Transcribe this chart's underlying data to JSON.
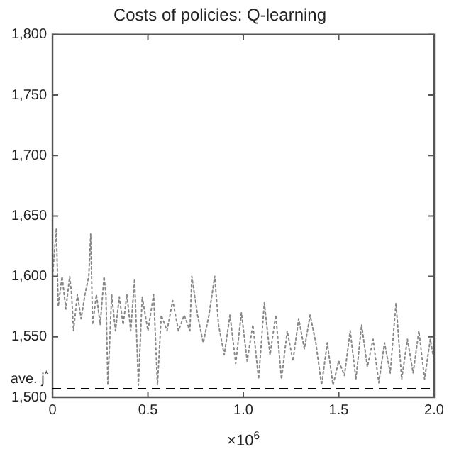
{
  "chart_data": {
    "type": "line",
    "title": "Costs of policies: Q-learning",
    "xlabel": "×10$^{6}$",
    "xlim": [
      0,
      2
    ],
    "xticks": [
      0,
      0.5,
      {
        "value": 1,
        "label": "1.0"
      },
      1.5,
      {
        "value": 2,
        "label": "2.0"
      }
    ],
    "ylim": [
      1500,
      1800
    ],
    "yticks": [
      {
        "value": 1500,
        "label": "1,500"
      },
      {
        "value": 1550,
        "label": "1,550"
      },
      {
        "value": 1600,
        "label": "1,600"
      },
      {
        "value": 1650,
        "label": "1,650"
      },
      {
        "value": 1700,
        "label": "1,700"
      },
      {
        "value": 1750,
        "label": "1,750"
      },
      {
        "value": 1800,
        "label": "1,800"
      }
    ],
    "grid": false,
    "legend": false,
    "marker": "none",
    "line_style": "dotted",
    "x": [
      0,
      0.02,
      0.03,
      0.05,
      0.07,
      0.09,
      0.1,
      0.11,
      0.13,
      0.15,
      0.17,
      0.19,
      0.2,
      0.21,
      0.23,
      0.25,
      0.27,
      0.28,
      0.29,
      0.31,
      0.33,
      0.35,
      0.37,
      0.39,
      0.41,
      0.43,
      0.45,
      0.47,
      0.5,
      0.53,
      0.55,
      0.57,
      0.6,
      0.63,
      0.66,
      0.69,
      0.72,
      0.73,
      0.76,
      0.79,
      0.82,
      0.85,
      0.87,
      0.9,
      0.93,
      0.96,
      0.99,
      1.02,
      1.05,
      1.08,
      1.11,
      1.14,
      1.17,
      1.2,
      1.23,
      1.26,
      1.29,
      1.32,
      1.35,
      1.38,
      1.41,
      1.44,
      1.47,
      1.5,
      1.53,
      1.56,
      1.59,
      1.62,
      1.65,
      1.68,
      1.71,
      1.74,
      1.77,
      1.8,
      1.83,
      1.86,
      1.89,
      1.92,
      1.95,
      1.98,
      2.0
    ],
    "series": [
      {
        "color": "#888888",
        "values": [
          1600,
          1640,
          1575,
          1600,
          1573,
          1600,
          1585,
          1555,
          1585,
          1565,
          1585,
          1600,
          1635,
          1560,
          1585,
          1560,
          1600,
          1585,
          1510,
          1585,
          1555,
          1583,
          1560,
          1585,
          1555,
          1598,
          1510,
          1583,
          1555,
          1585,
          1510,
          1568,
          1555,
          1580,
          1555,
          1568,
          1555,
          1600,
          1568,
          1545,
          1568,
          1600,
          1560,
          1535,
          1568,
          1528,
          1570,
          1530,
          1560,
          1515,
          1578,
          1535,
          1568,
          1515,
          1555,
          1530,
          1565,
          1540,
          1568,
          1545,
          1510,
          1545,
          1510,
          1530,
          1518,
          1555,
          1515,
          1560,
          1525,
          1548,
          1512,
          1545,
          1520,
          1578,
          1515,
          1548,
          1520,
          1555,
          1515,
          1548,
          1530
        ]
      }
    ],
    "ref_lines": [
      {
        "axis": "y",
        "value": 1507,
        "label": "ave. j$^{*}$",
        "color": "#000000",
        "line_style": "dashed"
      }
    ]
  }
}
